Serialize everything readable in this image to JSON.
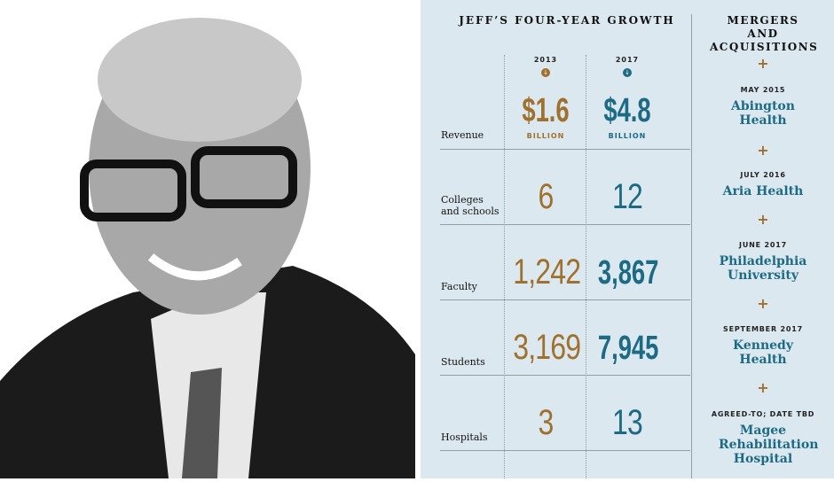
{
  "growth": {
    "title": "JEFF’S FOUR-YEAR GROWTH",
    "years": [
      "2013",
      "2017"
    ],
    "rows": [
      {
        "label": "Revenue",
        "v2013": "$1.6",
        "v2017": "$4.8",
        "unit": "BILLION"
      },
      {
        "label": "Colleges and schools",
        "v2013": "6",
        "v2017": "12"
      },
      {
        "label": "Faculty",
        "v2013": "1,242",
        "v2017": "3,867"
      },
      {
        "label": "Students",
        "v2013": "3,169",
        "v2017": "7,945"
      },
      {
        "label": "Hospitals",
        "v2013": "3",
        "v2017": "13"
      }
    ]
  },
  "mergers": {
    "title": "MERGERS AND ACQUISITIONS",
    "items": [
      {
        "date": "MAY 2015",
        "name": "Abington Health"
      },
      {
        "date": "JULY 2016",
        "name": "Aria Health"
      },
      {
        "date": "JUNE 2017",
        "name": "Philadelphia University"
      },
      {
        "date": "SEPTEMBER 2017",
        "name": "Kennedy Health"
      },
      {
        "date": "AGREED-TO; DATE TBD",
        "name": "Magee Rehabilitation Hospital"
      }
    ]
  },
  "colors": {
    "gold": "#a0712e",
    "teal": "#1d6a85",
    "background": "#dce8ef"
  }
}
